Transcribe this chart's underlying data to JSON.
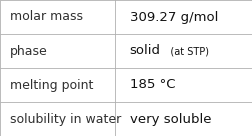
{
  "rows": [
    {
      "label": "molar mass",
      "value_parts": [
        {
          "text": "309.27 g/mol",
          "bold": false,
          "fontsize": 9.5
        }
      ]
    },
    {
      "label": "phase",
      "value_parts": [
        {
          "text": "solid",
          "bold": false,
          "fontsize": 9.5
        },
        {
          "text": "   (at STP)",
          "bold": false,
          "fontsize": 7.0
        }
      ]
    },
    {
      "label": "melting point",
      "value_parts": [
        {
          "text": "185 °C",
          "bold": false,
          "fontsize": 9.5
        }
      ]
    },
    {
      "label": "solubility in water",
      "value_parts": [
        {
          "text": "very soluble",
          "bold": false,
          "fontsize": 9.5
        }
      ]
    }
  ],
  "col_split": 0.455,
  "background": "#ffffff",
  "border_color": "#b0b0b0",
  "label_fontsize": 9.0,
  "label_color": "#303030",
  "value_color": "#111111",
  "fig_width": 2.52,
  "fig_height": 1.36,
  "dpi": 100
}
